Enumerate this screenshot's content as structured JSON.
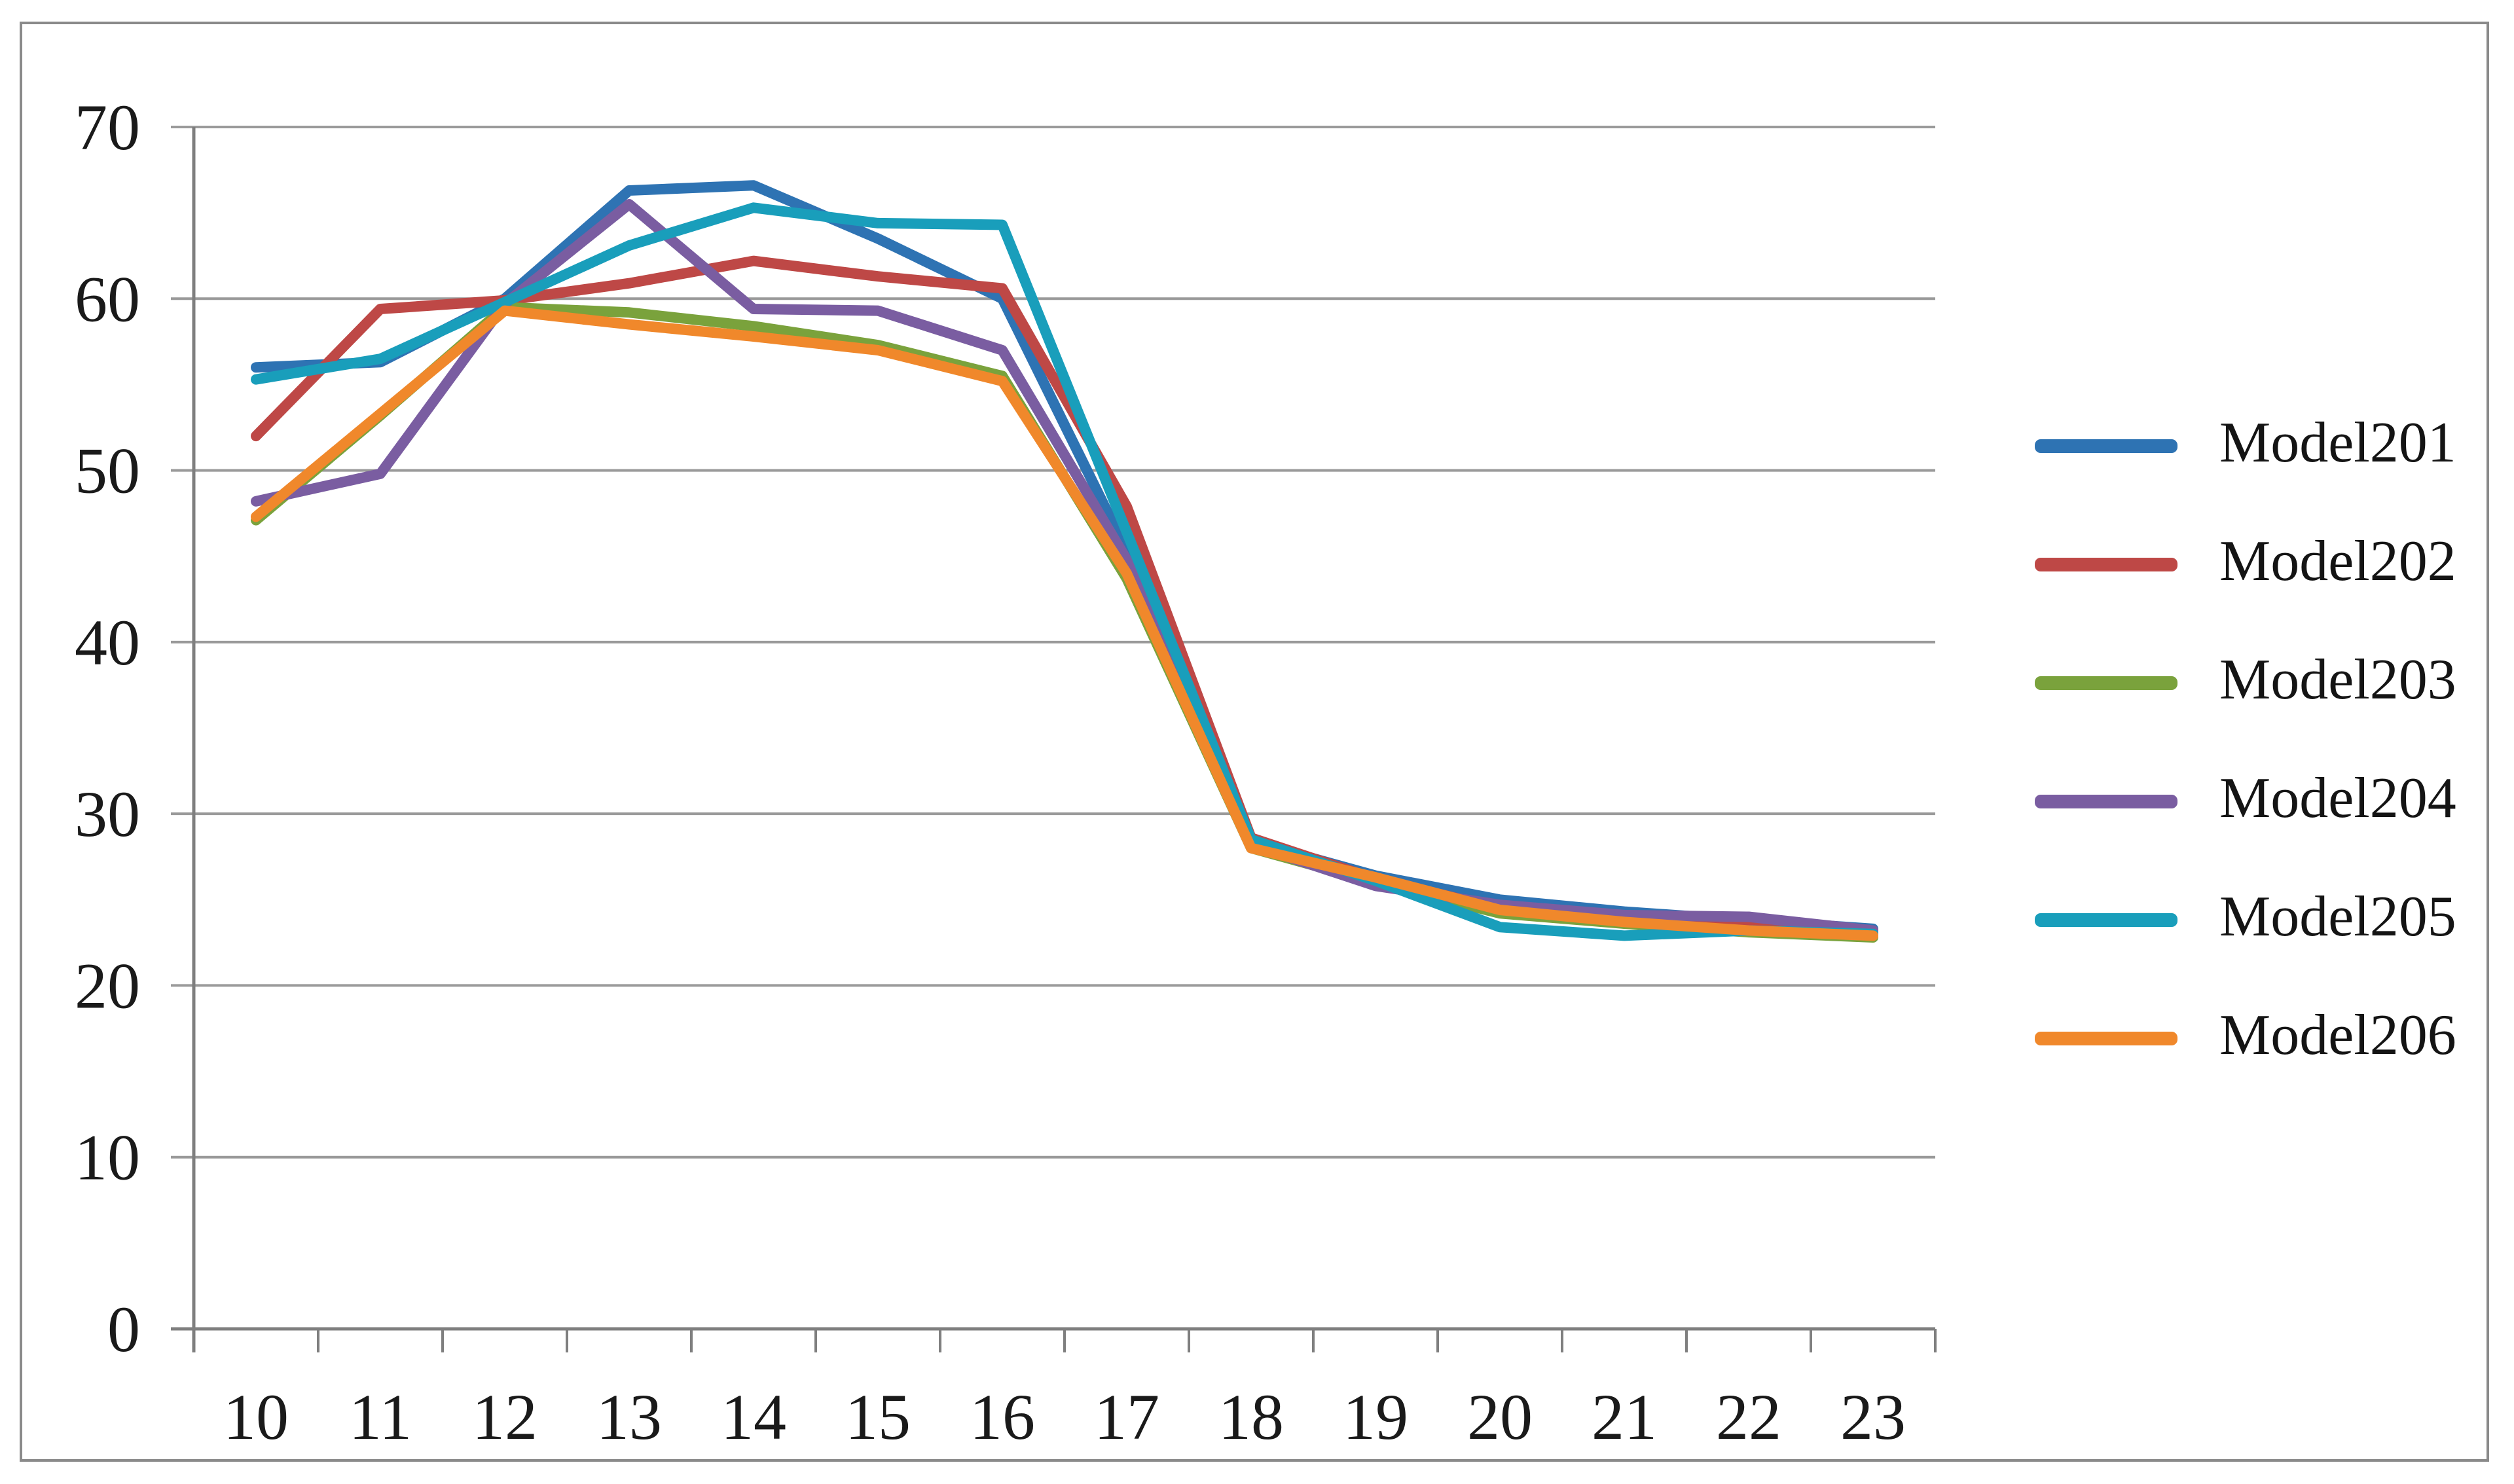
{
  "chart_data": {
    "type": "line",
    "title": "",
    "xlabel": "",
    "ylabel": "",
    "x": [
      10,
      11,
      12,
      13,
      14,
      15,
      16,
      17,
      18,
      19,
      20,
      21,
      22,
      23
    ],
    "yticks": [
      0,
      10,
      20,
      30,
      40,
      50,
      60,
      70
    ],
    "ylim": [
      0,
      70
    ],
    "grid": true,
    "legend_position": "right",
    "series": [
      {
        "name": "Model201",
        "color": "#2E73B3",
        "values": [
          56.0,
          56.3,
          60.0,
          66.3,
          66.6,
          63.5,
          60.0,
          45.3,
          28.4,
          26.4,
          25.0,
          24.3,
          23.8,
          23.3
        ]
      },
      {
        "name": "Model202",
        "color": "#BE4846",
        "values": [
          52.0,
          59.4,
          59.9,
          60.9,
          62.2,
          61.3,
          60.6,
          47.9,
          28.6,
          26.2,
          24.5,
          23.9,
          23.5,
          23.1
        ]
      },
      {
        "name": "Model203",
        "color": "#7AA23C",
        "values": [
          47.1,
          53.2,
          59.5,
          59.2,
          58.4,
          57.3,
          55.5,
          43.7,
          28.0,
          26.0,
          24.2,
          23.6,
          23.1,
          22.8
        ]
      },
      {
        "name": "Model204",
        "color": "#7A5DA1",
        "values": [
          48.2,
          49.8,
          59.7,
          65.5,
          59.4,
          59.3,
          57.0,
          44.8,
          28.2,
          25.8,
          24.7,
          24.1,
          24.0,
          23.2
        ]
      },
      {
        "name": "Model205",
        "color": "#199EBB",
        "values": [
          55.3,
          56.5,
          59.8,
          63.1,
          65.3,
          64.4,
          64.3,
          46.4,
          28.5,
          26.1,
          23.4,
          22.9,
          23.2,
          23.0
        ]
      },
      {
        "name": "Model206",
        "color": "#F0882B",
        "values": [
          47.3,
          53.3,
          59.3,
          58.5,
          57.8,
          57.0,
          55.2,
          44.0,
          28.0,
          26.3,
          24.4,
          23.7,
          23.2,
          22.9
        ]
      }
    ]
  },
  "colors": {
    "grid": "#9A9A9A",
    "axis": "#7F7F7F",
    "tick_label": "#1A1A1A",
    "legend_label": "#141414",
    "figure_border": "#8A8A8A",
    "background": "#FFFFFF"
  }
}
